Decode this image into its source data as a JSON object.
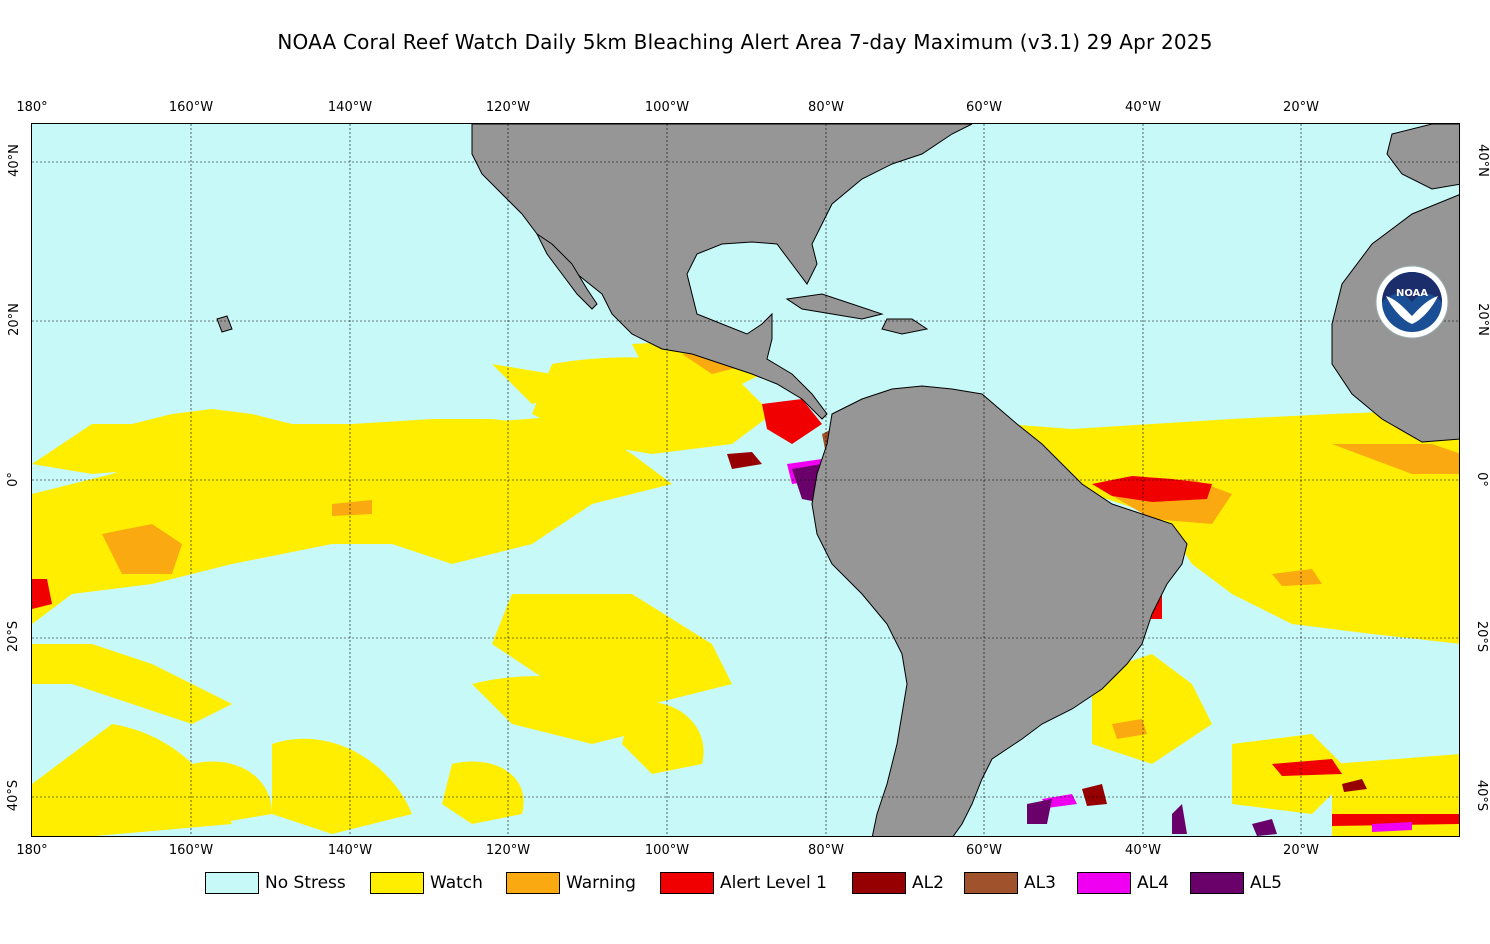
{
  "title": "NOAA Coral Reef Watch Daily 5km Bleaching Alert Area 7-day Maximum  (v3.1)   29 Apr 2025",
  "lon_labels": [
    "180°",
    "160°W",
    "140°W",
    "120°W",
    "100°W",
    "80°W",
    "60°W",
    "40°W",
    "20°W"
  ],
  "lat_labels_left": [
    "40°N",
    "20°N",
    "0°",
    "20°S",
    "40°S"
  ],
  "lat_labels_right": [
    "40°N",
    "20°N",
    "0°",
    "20°S",
    "40°S"
  ],
  "legend": [
    {
      "label": "No Stress",
      "color": "#c8f9f9"
    },
    {
      "label": "Watch",
      "color": "#ffee00"
    },
    {
      "label": "Warning",
      "color": "#faaa10"
    },
    {
      "label": "Alert Level 1",
      "color": "#f00000"
    },
    {
      "label": "AL2",
      "color": "#960000"
    },
    {
      "label": "AL3",
      "color": "#a0522d"
    },
    {
      "label": "AL4",
      "color": "#f000f0"
    },
    {
      "label": "AL5",
      "color": "#6a006a"
    }
  ],
  "colors": {
    "land": "#969696",
    "ocean": "#c8f9f9"
  },
  "logo_text": "NOAA"
}
